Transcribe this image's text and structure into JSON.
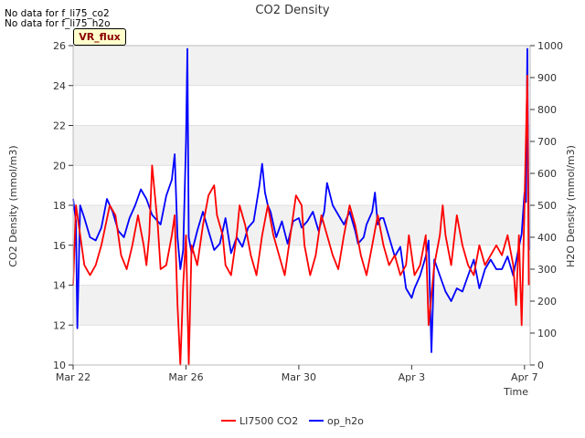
{
  "notes": [
    "No data for f_li75_co2",
    "No data for f_li75_h2o"
  ],
  "tag_label": "VR_flux",
  "colors": {
    "co2": "#ff0000",
    "h2o": "#0000ff",
    "band": "#ebebeb",
    "grid": "#d8d8d8"
  },
  "chart_data": {
    "type": "line",
    "title": "CO2 Density",
    "xlabel": "Time",
    "ylabel": "CO2 Density (mmol/m3)",
    "y2label": "H2O Density (mmol/m3)",
    "x_unit": "days since Mar 22",
    "xlim": [
      0,
      16.2
    ],
    "ylim": [
      10,
      26
    ],
    "y2lim": [
      0,
      1000
    ],
    "x_ticks": [
      {
        "value": 0,
        "label": "Mar 22"
      },
      {
        "value": 4,
        "label": "Mar 26"
      },
      {
        "value": 8,
        "label": "Mar 30"
      },
      {
        "value": 12,
        "label": "Apr 3"
      },
      {
        "value": 16,
        "label": "Apr 7"
      }
    ],
    "y_ticks": [
      10,
      12,
      14,
      16,
      18,
      20,
      22,
      24,
      26
    ],
    "y2_ticks": [
      0,
      100,
      200,
      300,
      400,
      500,
      600,
      700,
      800,
      900,
      1000
    ],
    "series": [
      {
        "name": "LI7500 CO2",
        "axis": "left",
        "color": "#ff0000",
        "points": [
          [
            0.0,
            14.0
          ],
          [
            0.1,
            18.0
          ],
          [
            0.2,
            17.0
          ],
          [
            0.4,
            15.0
          ],
          [
            0.6,
            14.5
          ],
          [
            0.8,
            15.0
          ],
          [
            1.0,
            16.0
          ],
          [
            1.3,
            18.0
          ],
          [
            1.5,
            17.5
          ],
          [
            1.7,
            15.5
          ],
          [
            1.9,
            14.8
          ],
          [
            2.1,
            16.0
          ],
          [
            2.3,
            17.5
          ],
          [
            2.5,
            16.0
          ],
          [
            2.6,
            15.0
          ],
          [
            2.7,
            16.5
          ],
          [
            2.8,
            20.0
          ],
          [
            3.0,
            17.0
          ],
          [
            3.1,
            14.8
          ],
          [
            3.3,
            15.0
          ],
          [
            3.5,
            16.5
          ],
          [
            3.6,
            17.5
          ],
          [
            3.7,
            13.0
          ],
          [
            3.8,
            10.0
          ],
          [
            3.9,
            14.0
          ],
          [
            4.0,
            16.5
          ],
          [
            4.1,
            10.0
          ],
          [
            4.2,
            16.0
          ],
          [
            4.4,
            15.0
          ],
          [
            4.6,
            17.0
          ],
          [
            4.8,
            18.5
          ],
          [
            5.0,
            19.0
          ],
          [
            5.1,
            17.5
          ],
          [
            5.3,
            16.5
          ],
          [
            5.4,
            15.0
          ],
          [
            5.6,
            14.5
          ],
          [
            5.8,
            16.5
          ],
          [
            5.9,
            18.0
          ],
          [
            6.1,
            17.0
          ],
          [
            6.3,
            15.5
          ],
          [
            6.5,
            14.5
          ],
          [
            6.7,
            16.5
          ],
          [
            6.9,
            18.0
          ],
          [
            7.1,
            16.5
          ],
          [
            7.3,
            15.5
          ],
          [
            7.5,
            14.5
          ],
          [
            7.7,
            16.5
          ],
          [
            7.9,
            18.5
          ],
          [
            8.1,
            18.0
          ],
          [
            8.2,
            16.0
          ],
          [
            8.4,
            14.5
          ],
          [
            8.6,
            15.5
          ],
          [
            8.8,
            17.5
          ],
          [
            9.0,
            16.5
          ],
          [
            9.2,
            15.5
          ],
          [
            9.4,
            14.8
          ],
          [
            9.6,
            16.5
          ],
          [
            9.8,
            18.0
          ],
          [
            10.0,
            17.0
          ],
          [
            10.2,
            15.5
          ],
          [
            10.4,
            14.5
          ],
          [
            10.6,
            16.0
          ],
          [
            10.8,
            17.5
          ],
          [
            11.0,
            16.0
          ],
          [
            11.2,
            15.0
          ],
          [
            11.4,
            15.5
          ],
          [
            11.6,
            14.5
          ],
          [
            11.8,
            15.0
          ],
          [
            11.9,
            16.5
          ],
          [
            12.1,
            14.5
          ],
          [
            12.3,
            15.0
          ],
          [
            12.5,
            16.5
          ],
          [
            12.6,
            12.0
          ],
          [
            12.8,
            15.0
          ],
          [
            13.0,
            16.5
          ],
          [
            13.1,
            18.0
          ],
          [
            13.2,
            16.5
          ],
          [
            13.4,
            15.0
          ],
          [
            13.6,
            17.5
          ],
          [
            13.8,
            16.0
          ],
          [
            14.0,
            15.0
          ],
          [
            14.2,
            14.5
          ],
          [
            14.4,
            16.0
          ],
          [
            14.6,
            15.0
          ],
          [
            14.8,
            15.5
          ],
          [
            15.0,
            16.0
          ],
          [
            15.2,
            15.5
          ],
          [
            15.4,
            16.5
          ],
          [
            15.6,
            15.0
          ],
          [
            15.7,
            13.0
          ],
          [
            15.8,
            16.5
          ],
          [
            15.9,
            12.0
          ],
          [
            16.0,
            18.0
          ],
          [
            16.1,
            24.5
          ],
          [
            16.15,
            14.0
          ]
        ]
      },
      {
        "name": "op_h2o",
        "axis": "right",
        "color": "#0000ff",
        "points": [
          [
            0.0,
            520
          ],
          [
            0.1,
            450
          ],
          [
            0.15,
            115
          ],
          [
            0.25,
            500
          ],
          [
            0.4,
            460
          ],
          [
            0.6,
            400
          ],
          [
            0.8,
            390
          ],
          [
            1.0,
            430
          ],
          [
            1.2,
            520
          ],
          [
            1.4,
            480
          ],
          [
            1.6,
            420
          ],
          [
            1.8,
            400
          ],
          [
            2.0,
            460
          ],
          [
            2.2,
            500
          ],
          [
            2.4,
            550
          ],
          [
            2.6,
            520
          ],
          [
            2.8,
            470
          ],
          [
            3.0,
            450
          ],
          [
            3.1,
            440
          ],
          [
            3.3,
            530
          ],
          [
            3.5,
            580
          ],
          [
            3.6,
            660
          ],
          [
            3.7,
            400
          ],
          [
            3.8,
            300
          ],
          [
            3.9,
            360
          ],
          [
            4.0,
            700
          ],
          [
            4.05,
            990
          ],
          [
            4.1,
            400
          ],
          [
            4.2,
            350
          ],
          [
            4.4,
            420
          ],
          [
            4.6,
            480
          ],
          [
            4.8,
            420
          ],
          [
            5.0,
            360
          ],
          [
            5.2,
            380
          ],
          [
            5.4,
            460
          ],
          [
            5.6,
            350
          ],
          [
            5.8,
            400
          ],
          [
            6.0,
            370
          ],
          [
            6.2,
            430
          ],
          [
            6.4,
            450
          ],
          [
            6.6,
            560
          ],
          [
            6.7,
            630
          ],
          [
            6.8,
            540
          ],
          [
            6.9,
            500
          ],
          [
            7.0,
            480
          ],
          [
            7.2,
            400
          ],
          [
            7.4,
            450
          ],
          [
            7.6,
            380
          ],
          [
            7.8,
            450
          ],
          [
            8.0,
            460
          ],
          [
            8.1,
            430
          ],
          [
            8.3,
            450
          ],
          [
            8.5,
            480
          ],
          [
            8.7,
            420
          ],
          [
            8.9,
            480
          ],
          [
            9.0,
            570
          ],
          [
            9.2,
            500
          ],
          [
            9.4,
            470
          ],
          [
            9.6,
            440
          ],
          [
            9.8,
            480
          ],
          [
            10.0,
            420
          ],
          [
            10.1,
            380
          ],
          [
            10.3,
            400
          ],
          [
            10.4,
            440
          ],
          [
            10.6,
            480
          ],
          [
            10.7,
            540
          ],
          [
            10.8,
            440
          ],
          [
            10.9,
            460
          ],
          [
            11.0,
            460
          ],
          [
            11.2,
            400
          ],
          [
            11.4,
            340
          ],
          [
            11.6,
            370
          ],
          [
            11.8,
            240
          ],
          [
            12.0,
            210
          ],
          [
            12.1,
            240
          ],
          [
            12.3,
            280
          ],
          [
            12.5,
            340
          ],
          [
            12.6,
            390
          ],
          [
            12.7,
            40
          ],
          [
            12.8,
            330
          ],
          [
            13.0,
            280
          ],
          [
            13.2,
            230
          ],
          [
            13.4,
            200
          ],
          [
            13.6,
            240
          ],
          [
            13.8,
            230
          ],
          [
            14.0,
            280
          ],
          [
            14.2,
            330
          ],
          [
            14.4,
            240
          ],
          [
            14.6,
            300
          ],
          [
            14.8,
            330
          ],
          [
            15.0,
            300
          ],
          [
            15.2,
            300
          ],
          [
            15.4,
            340
          ],
          [
            15.6,
            280
          ],
          [
            15.8,
            370
          ],
          [
            15.9,
            410
          ],
          [
            16.0,
            540
          ],
          [
            16.05,
            510
          ],
          [
            16.1,
            990
          ],
          [
            16.15,
            360
          ]
        ]
      }
    ],
    "legend_position": "bottom-center"
  }
}
